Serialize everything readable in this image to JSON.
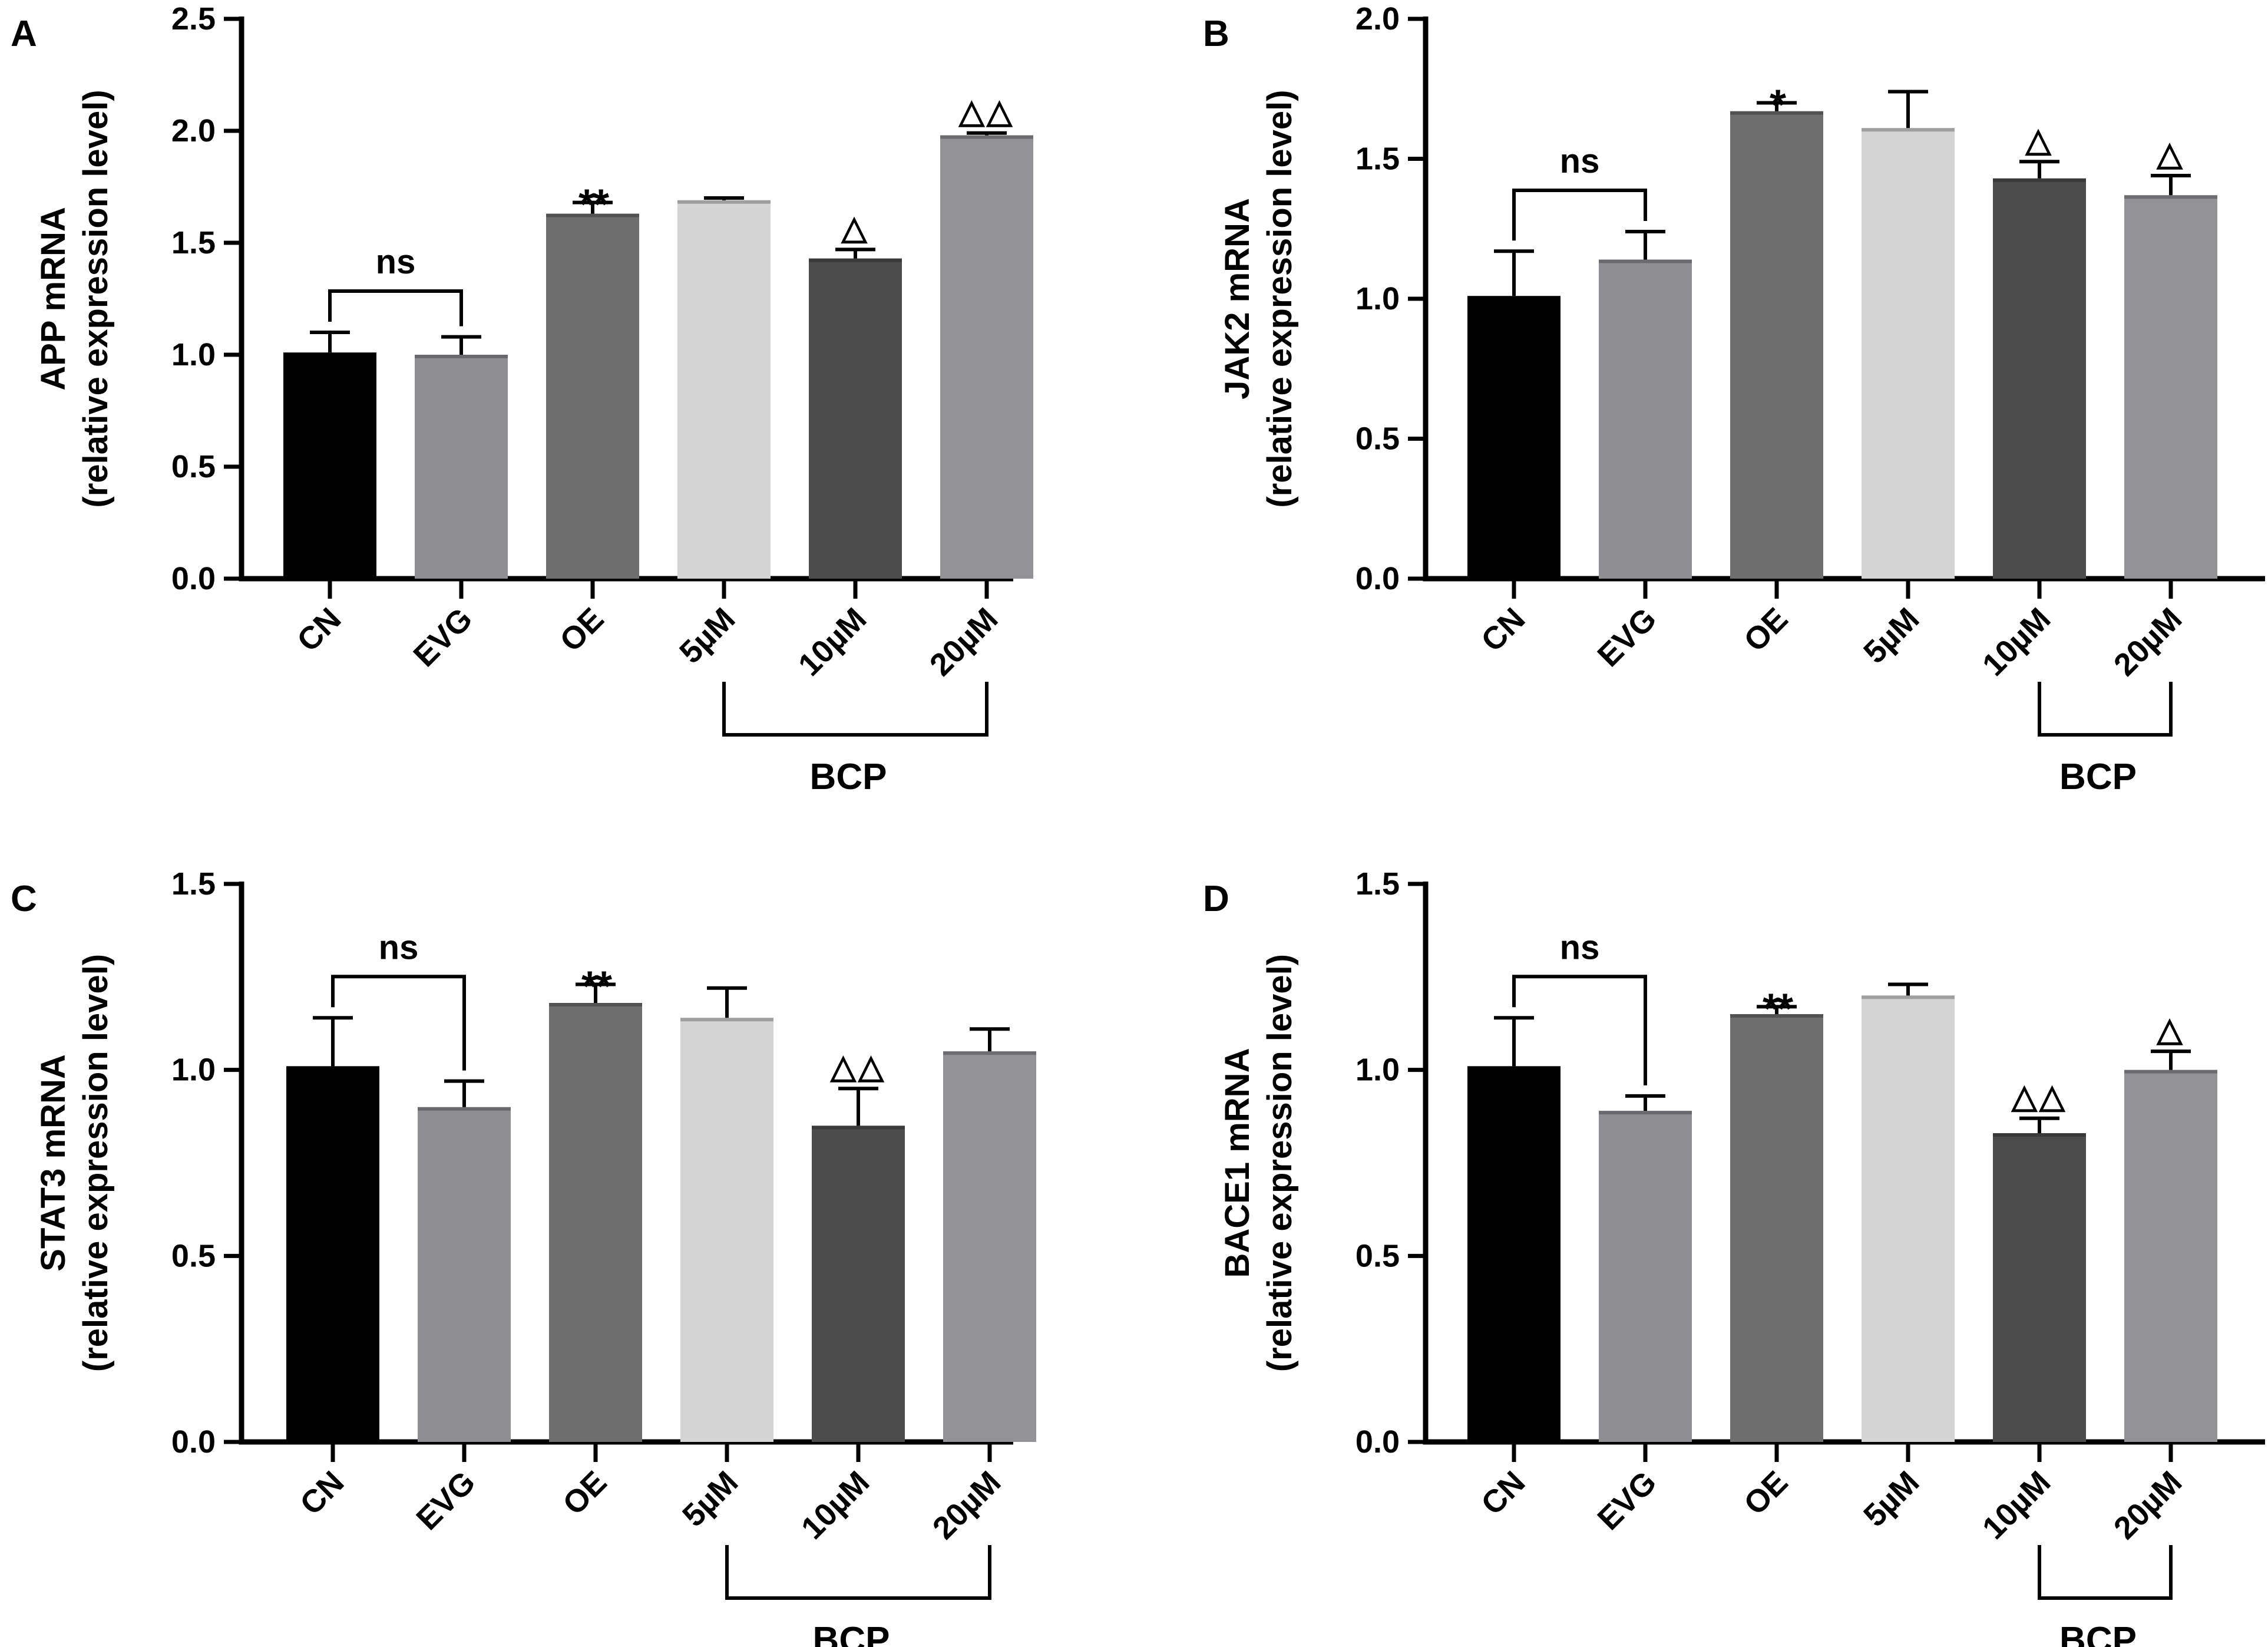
{
  "colors": {
    "axis": "#000000",
    "bars": [
      "#000000",
      "#8e8e93",
      "#6e6e6e",
      "#d4d4d4",
      "#4c4c4c",
      "#929297"
    ]
  },
  "chart_data": [
    {
      "panel": "A",
      "type": "bar",
      "ylabel_line1": "APP mRNA",
      "ylabel_line2": "(relative expression level)",
      "categories": [
        "CN",
        "EVG",
        "OE",
        "5µM",
        "10µM",
        "20µM"
      ],
      "values": [
        1.01,
        1.0,
        1.63,
        1.69,
        1.43,
        1.98
      ],
      "errors": [
        0.09,
        0.08,
        0.05,
        0.01,
        0.04,
        0.01
      ],
      "ylim": [
        0,
        2.5
      ],
      "yticks": [
        "0.0",
        "0.5",
        "1.0",
        "1.5",
        "2.0",
        "2.5"
      ],
      "annotations": [
        "",
        "",
        "**",
        "",
        "△",
        "△△"
      ],
      "ns_label": "ns",
      "group_label": "BCP",
      "group_span": [
        3,
        5
      ]
    },
    {
      "panel": "B",
      "type": "bar",
      "ylabel_line1": "JAK2 mRNA",
      "ylabel_line2": "(relative expression level)",
      "categories": [
        "CN",
        "EVG",
        "OE",
        "5µM",
        "10µM",
        "20µM"
      ],
      "values": [
        1.01,
        1.14,
        1.67,
        1.61,
        1.43,
        1.37
      ],
      "errors": [
        0.16,
        0.1,
        0.03,
        0.13,
        0.06,
        0.07
      ],
      "ylim": [
        0,
        2.0
      ],
      "yticks": [
        "0.0",
        "0.5",
        "1.0",
        "1.5",
        "2.0"
      ],
      "annotations": [
        "",
        "",
        "*",
        "",
        "△",
        "△"
      ],
      "ns_label": "ns",
      "group_label": "BCP",
      "group_span": [
        4,
        5
      ]
    },
    {
      "panel": "C",
      "type": "bar",
      "ylabel_line1": "STAT3  mRNA",
      "ylabel_line2": "(relative expression level)",
      "categories": [
        "CN",
        "EVG",
        "OE",
        "5µM",
        "10µM",
        "20µM"
      ],
      "values": [
        1.01,
        0.9,
        1.18,
        1.14,
        0.85,
        1.05
      ],
      "errors": [
        0.13,
        0.07,
        0.05,
        0.08,
        0.1,
        0.06
      ],
      "ylim": [
        0,
        1.5
      ],
      "yticks": [
        "0.0",
        "0.5",
        "1.0",
        "1.5"
      ],
      "annotations": [
        "",
        "",
        "**",
        "",
        "△△",
        ""
      ],
      "ns_label": "ns",
      "group_label": "BCP",
      "group_span": [
        3,
        5
      ]
    },
    {
      "panel": "D",
      "type": "bar",
      "ylabel_line1": "BACE1 mRNA",
      "ylabel_line2": "(relative expression level)",
      "categories": [
        "CN",
        "EVG",
        "OE",
        "5µM",
        "10µM",
        "20µM"
      ],
      "values": [
        1.01,
        0.89,
        1.15,
        1.2,
        0.83,
        1.0
      ],
      "errors": [
        0.13,
        0.04,
        0.02,
        0.03,
        0.04,
        0.05
      ],
      "ylim": [
        0,
        1.5
      ],
      "yticks": [
        "0.0",
        "0.5",
        "1.0",
        "1.5"
      ],
      "annotations": [
        "",
        "",
        "**",
        "",
        "△△",
        "△"
      ],
      "ns_label": "ns",
      "group_label": "BCP",
      "group_span": [
        4,
        5
      ]
    }
  ]
}
